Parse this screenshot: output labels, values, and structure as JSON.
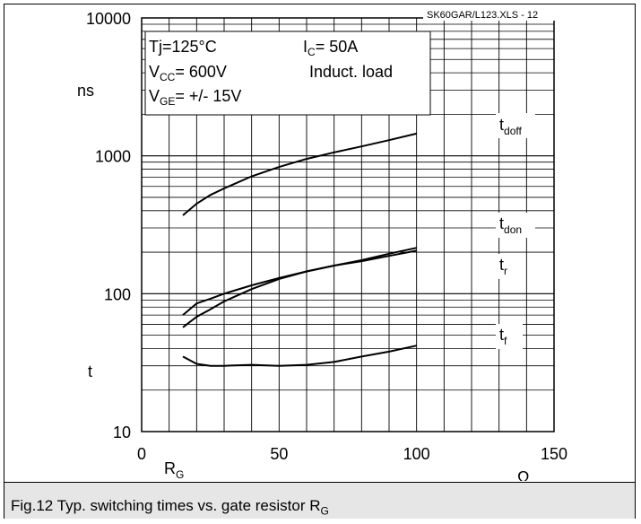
{
  "chart_data": {
    "type": "line",
    "xscale": "linear",
    "yscale": "log",
    "xlim": [
      0,
      150
    ],
    "ylim": [
      10,
      10000
    ],
    "x_ticks": [
      "0",
      "50",
      "100",
      "150"
    ],
    "y_ticks": [
      "10",
      "100",
      "1000",
      "10000"
    ],
    "xlabel": {
      "main": "R",
      "sub": "G"
    },
    "x_unit": "Ω",
    "ylabel_top": "ns",
    "ylabel_bottom": "t",
    "grid": true,
    "file_label": "SK60GAR/L123.XLS - 12",
    "conditions": {
      "tj": "Tj=125°C",
      "ic": {
        "main": "I",
        "sub": "C",
        "rest": "= 50A"
      },
      "vcc": {
        "main": "V",
        "sub": "CC",
        "rest": "= 600V"
      },
      "load": "Induct. load",
      "vge": {
        "main": "V",
        "sub": "GE",
        "rest": "= +/- 15V"
      }
    },
    "series": [
      {
        "name": "t_doff",
        "label_main": "t",
        "label_sub": "doff",
        "x": [
          15,
          20,
          25,
          30,
          40,
          50,
          60,
          70,
          80,
          90,
          100
        ],
        "values": [
          370,
          450,
          520,
          580,
          710,
          830,
          950,
          1060,
          1170,
          1300,
          1450
        ]
      },
      {
        "name": "t_don",
        "label_main": "t",
        "label_sub": "don",
        "x": [
          15,
          20,
          25,
          30,
          40,
          50,
          60,
          70,
          80,
          90,
          100
        ],
        "values": [
          70,
          85,
          92,
          100,
          115,
          130,
          145,
          160,
          175,
          195,
          215
        ]
      },
      {
        "name": "t_r",
        "label_main": "t",
        "label_sub": "r",
        "x": [
          15,
          20,
          25,
          30,
          40,
          50,
          60,
          70,
          80,
          90,
          100
        ],
        "values": [
          57,
          68,
          77,
          88,
          108,
          128,
          145,
          160,
          172,
          188,
          205
        ]
      },
      {
        "name": "t_f",
        "label_main": "t",
        "label_sub": "f",
        "x": [
          15,
          20,
          25,
          30,
          40,
          50,
          60,
          70,
          80,
          90,
          100
        ],
        "values": [
          35,
          31,
          30,
          30,
          30.5,
          30,
          30.5,
          32,
          35,
          38,
          42
        ]
      }
    ]
  },
  "caption": {
    "main": "Fig.12 Typ. switching times vs. gate resistor R",
    "sub": "G"
  }
}
